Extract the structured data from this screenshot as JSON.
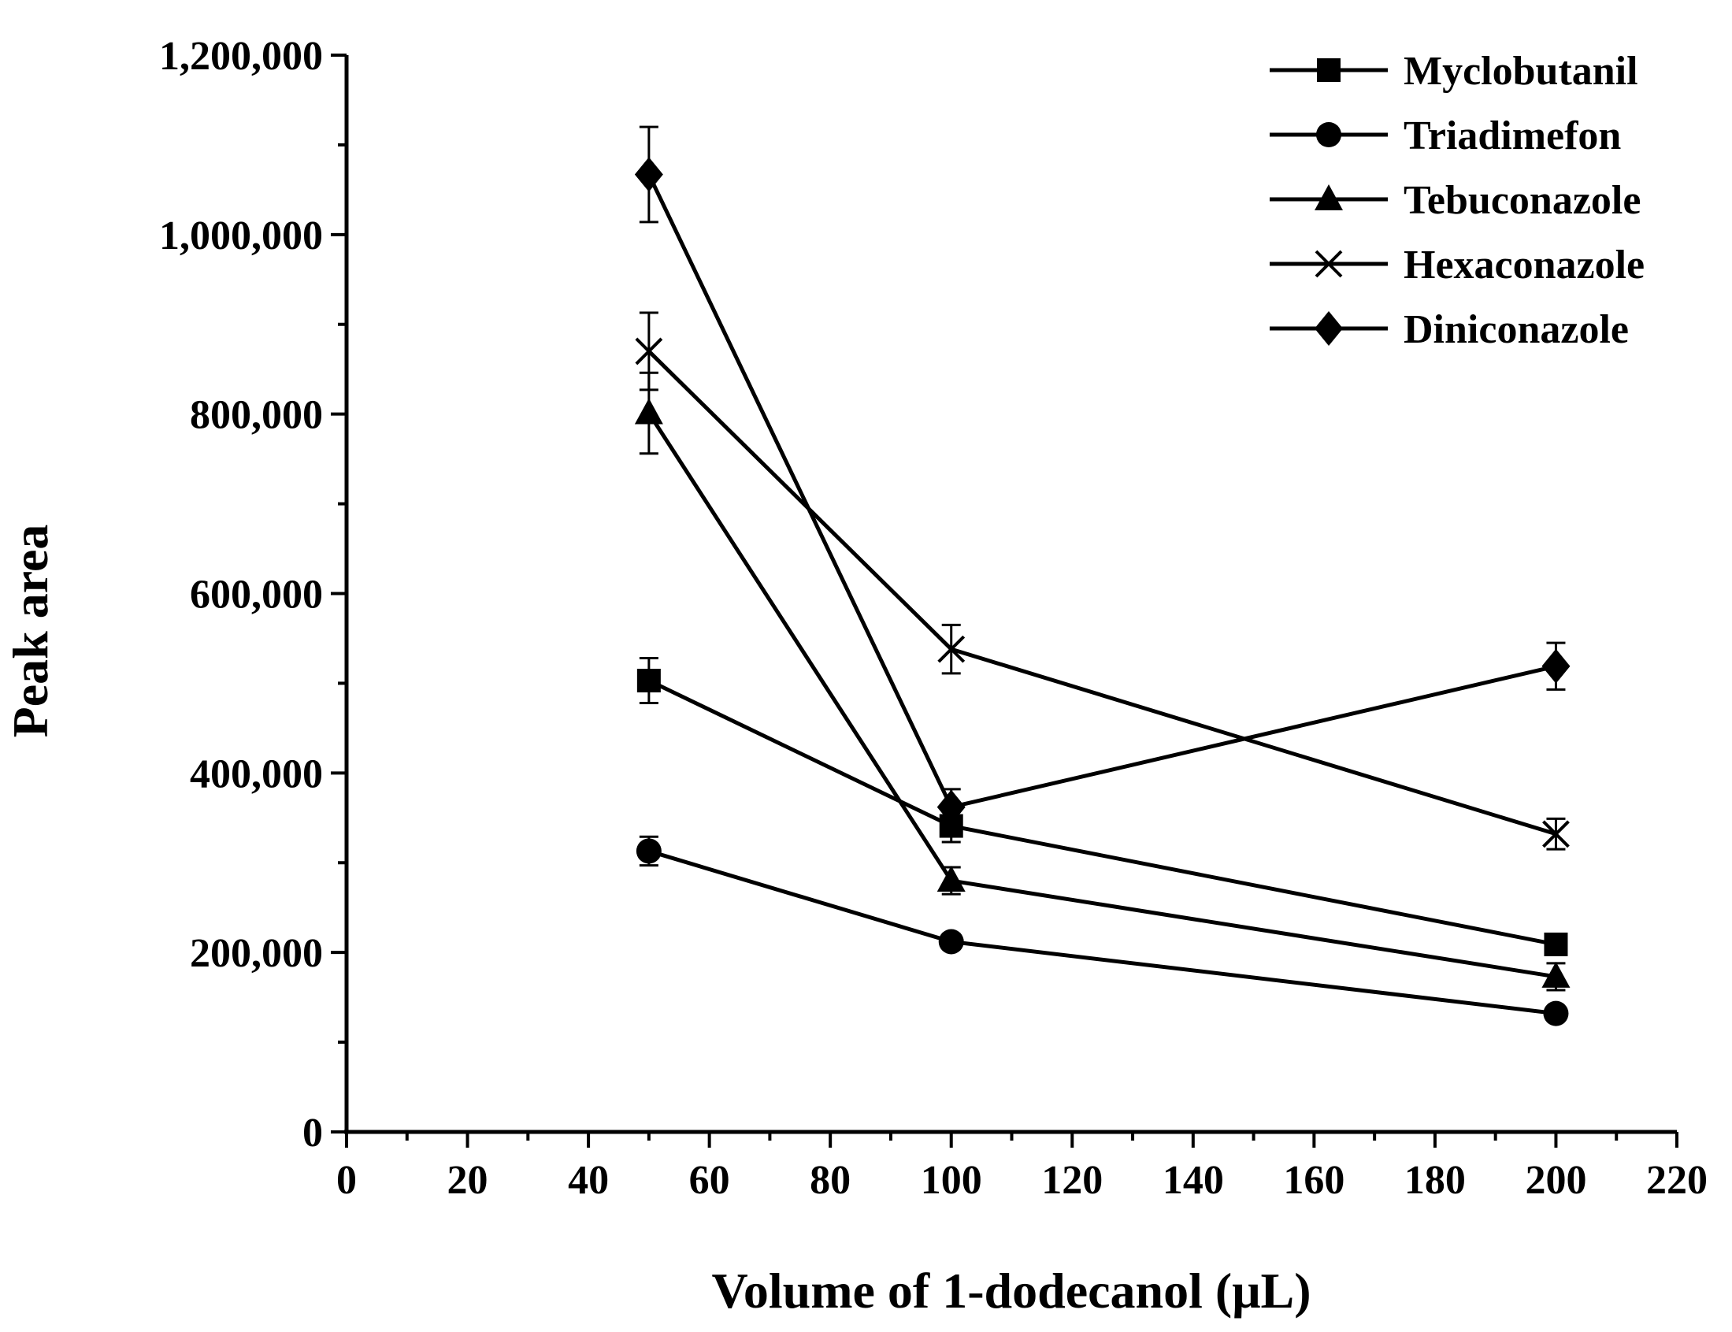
{
  "chart_data": {
    "type": "line",
    "title": "",
    "xlabel": "Volume of 1-dodecanol (μL)",
    "ylabel": "Peak area",
    "xlim": [
      0,
      220
    ],
    "ylim": [
      0,
      1200000
    ],
    "xticks": [
      0,
      20,
      40,
      60,
      80,
      100,
      120,
      140,
      160,
      180,
      200,
      220
    ],
    "xtick_labels": [
      "0",
      "20",
      "40",
      "60",
      "80",
      "100",
      "120",
      "140",
      "160",
      "180",
      "200",
      "220"
    ],
    "yticks": [
      0,
      200000,
      400000,
      600000,
      800000,
      1000000,
      1200000
    ],
    "ytick_labels": [
      "0",
      "200,000",
      "400,000",
      "600,000",
      "800,000",
      "1,000,000",
      "1,200,000"
    ],
    "legend_position": "top-right",
    "grid": false,
    "x": [
      50,
      100,
      200
    ],
    "series": [
      {
        "name": "Myclobutanil",
        "marker": "square",
        "values": [
          503000,
          341000,
          209000
        ],
        "errors": [
          25000,
          18000,
          8000
        ]
      },
      {
        "name": "Triadimefon",
        "marker": "circle",
        "values": [
          313000,
          212000,
          132000
        ],
        "errors": [
          16000,
          8000,
          6000
        ]
      },
      {
        "name": "Tebuconazole",
        "marker": "triangle",
        "values": [
          801000,
          280000,
          173000
        ],
        "errors": [
          45000,
          15000,
          15000
        ]
      },
      {
        "name": "Hexaconazole",
        "marker": "x",
        "values": [
          870000,
          538000,
          332000
        ],
        "errors": [
          43000,
          27000,
          17000
        ]
      },
      {
        "name": "Diniconazole",
        "marker": "diamond",
        "values": [
          1067000,
          362000,
          519000
        ],
        "errors": [
          53000,
          20000,
          26000
        ]
      }
    ]
  }
}
